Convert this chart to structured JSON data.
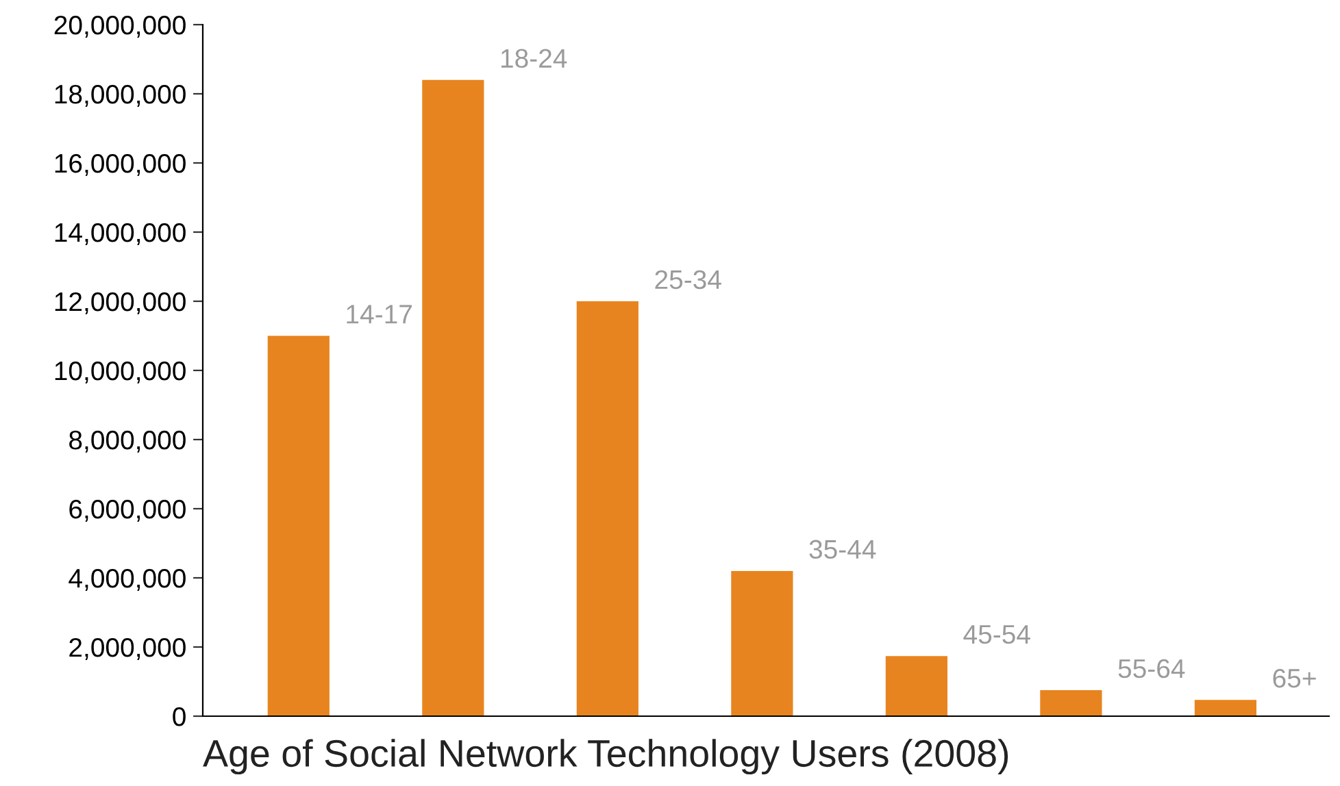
{
  "chart_data": {
    "type": "bar",
    "xlabel": "Age of Social Network Technology Users (2008)",
    "categories": [
      null,
      null,
      null,
      null,
      null,
      null,
      null
    ],
    "annotations": [
      "14-17",
      "18-24",
      "25-34",
      "35-44",
      "45-54",
      "55-64",
      "65+"
    ],
    "values": [
      11000000,
      18400000,
      12000000,
      4200000,
      1740000,
      750000,
      470000
    ],
    "color": "#e8841f",
    "ylim": [
      0,
      20000000
    ],
    "yticks": [
      {
        "value": 0,
        "label": "0"
      },
      {
        "value": 2000000,
        "label": "2,000,000"
      },
      {
        "value": 4000000,
        "label": "4,000,000"
      },
      {
        "value": 6000000,
        "label": "6,000,000"
      },
      {
        "value": 8000000,
        "label": "8,000,000"
      },
      {
        "value": 10000000,
        "label": "10,000,000"
      },
      {
        "value": 12000000,
        "label": "12,000,000"
      },
      {
        "value": 14000000,
        "label": "14,000,000"
      },
      {
        "value": 16000000,
        "label": "16,000,000"
      },
      {
        "value": 18000000,
        "label": "18,000,000"
      },
      {
        "value": 20000000,
        "label": "20,000,000"
      }
    ],
    "tick_labels": "y",
    "grid": false,
    "legend": false
  }
}
